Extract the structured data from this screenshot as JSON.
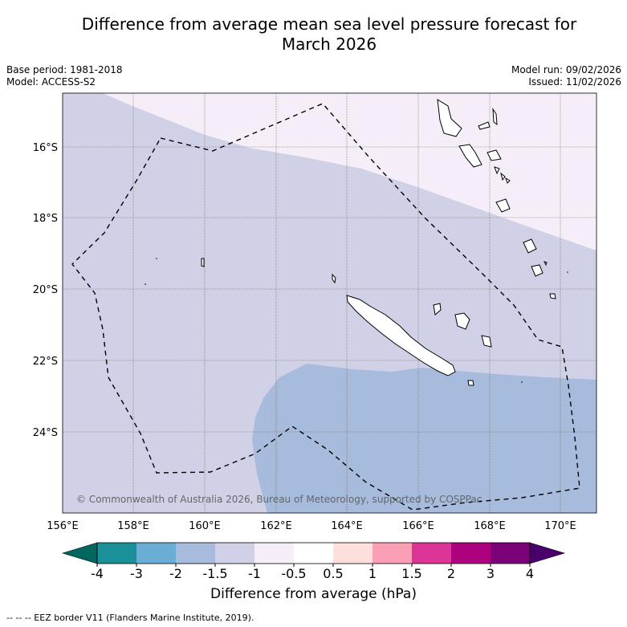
{
  "title_line1": "Difference from average mean sea level pressure forecast for",
  "title_line2": "March 2026",
  "left_info": {
    "base_period": "Base period: 1981-2018",
    "model": "Model: ACCESS-S2"
  },
  "right_info": {
    "model_run": "Model run: 09/02/2026",
    "issued": "Issued: 11/02/2026"
  },
  "copyright": "© Commonwealth of Australia 2026, Bureau of Meteorology, supported by COSPPac",
  "lon_ticks": [
    "156°E",
    "158°E",
    "160°E",
    "162°E",
    "164°E",
    "166°E",
    "168°E",
    "170°E"
  ],
  "lat_ticks": [
    "16°S",
    "18°S",
    "20°S",
    "22°S",
    "24°S"
  ],
  "colorbar": {
    "ticks": [
      "-4",
      "-3",
      "-2",
      "-1.5",
      "-1",
      "-0.5",
      "0.5",
      "1",
      "1.5",
      "2",
      "3",
      "4"
    ],
    "colors": [
      "#1a9199",
      "#6aaed5",
      "#a7bbdc",
      "#d0d1e6",
      "#f5edf7",
      "#ffffff",
      "#fde0dd",
      "#fa9fb5",
      "#dd3497",
      "#ae017e",
      "#7a0177"
    ],
    "under_color": "#01665e",
    "over_color": "#49006a",
    "label": "Difference from average (hPa)"
  },
  "footnote": "--  --  -- EEZ border V11 (Flanders Marine Institute, 2019).",
  "colors": {
    "zone_light": "#f5edf7",
    "zone_mid": "#d0d1e6",
    "zone_low": "#a7bbdc",
    "gridline": "#666666"
  }
}
